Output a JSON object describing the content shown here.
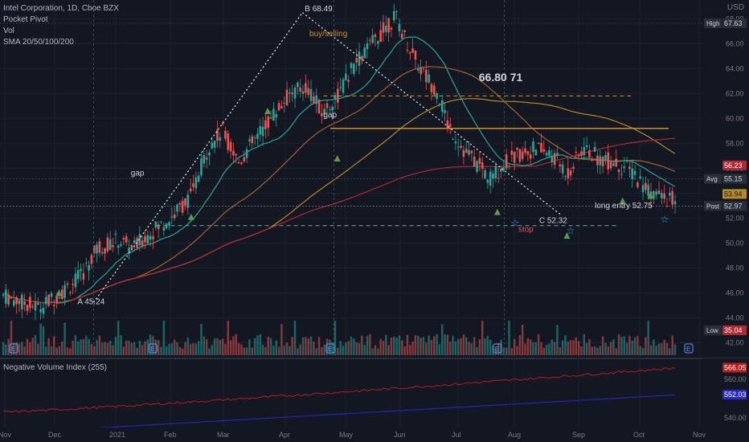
{
  "legend": {
    "symbol": "Intel Corporation, 1D, Cboe BZX",
    "line2": "Pocket Pivot",
    "line3": "Vol",
    "line4": "SMA 20/50/100/200"
  },
  "currency": "USD",
  "sub_pane_title": "Negative Volume Index (255)",
  "colors": {
    "background": "#131722",
    "up": "#26a69a",
    "down": "#ef5350",
    "grid": "#1e222d",
    "sma20": "#26a69a",
    "sma50": "#a1632f",
    "sma100": "#b58a28",
    "sma200": "#b22833",
    "nvi": "#b71c1c",
    "nvi_ma": "#2929c8",
    "pivot": "#5b9a4a",
    "orange_line": "#d98b1a"
  },
  "chart_data": {
    "type": "candlestick",
    "x_ticks": [
      "Nov",
      "Dec",
      "2021",
      "Feb",
      "Mar",
      "Apr",
      "May",
      "Jun",
      "Jul",
      "Aug",
      "Sep",
      "Oct",
      "Nov"
    ],
    "y_ticks": [
      "68.00",
      "66.00",
      "64.00",
      "62.00",
      "60.00",
      "58.00",
      "56.00",
      "54.00",
      "52.00",
      "50.00",
      "48.00",
      "46.00",
      "44.00",
      "42.00"
    ],
    "ylim": [
      41,
      69.5
    ],
    "price_axis_labels": [
      {
        "tag": "High",
        "value": "67.63",
        "color": "#2a2e39",
        "text_color": "#d1d4dc"
      },
      {
        "tag": "",
        "value": "56.23",
        "color": "#b22833",
        "text_color": "#ffffff"
      },
      {
        "tag": "Avg",
        "value": "55.15",
        "color": "#2a2e39",
        "text_color": "#d1d4dc"
      },
      {
        "tag": "",
        "value": "53.94",
        "color": "#b58a28",
        "text_color": "#131722"
      },
      {
        "tag": "Post",
        "value": "52.97",
        "color": "#2a2e39",
        "text_color": "#d1d4dc"
      },
      {
        "tag": "Low",
        "value": "35.04",
        "color": "#b22833",
        "text_color": "#ffffff"
      }
    ],
    "annotations": [
      {
        "text": "B  68.49",
        "x": 130,
        "y": 68.6,
        "color": "#d1d4dc"
      },
      {
        "text": "A 45.24",
        "x": 32,
        "y": 45.1,
        "color": "#d1d4dc"
      },
      {
        "text": "C 52.32",
        "x": 231,
        "y": 51.6,
        "color": "#d1d4dc"
      },
      {
        "text": "gap",
        "x": 55,
        "y": 55.4,
        "color": "#d1d4dc"
      },
      {
        "text": "gap",
        "x": 138,
        "y": 60.1,
        "color": "#d1d4dc"
      },
      {
        "text": "66.80  71",
        "x": 205,
        "y": 63.0,
        "color": "#d1d4dc"
      },
      {
        "text": "long entry 52.75",
        "x": 255,
        "y": 52.8,
        "color": "#d1d4dc"
      },
      {
        "text": "stop",
        "x": 222,
        "y": 50.9,
        "color": "#ef5350"
      },
      {
        "text": "buy/selling",
        "x": 132,
        "y": 66.6,
        "color": "#d98b1a"
      }
    ],
    "sub_axis_labels": [
      {
        "value": "566.05",
        "color": "#b71c1c"
      },
      {
        "value": "560.00",
        "color": ""
      },
      {
        "value": "552.03",
        "color": "#2929c8"
      },
      {
        "value": "540.00",
        "color": ""
      }
    ]
  }
}
